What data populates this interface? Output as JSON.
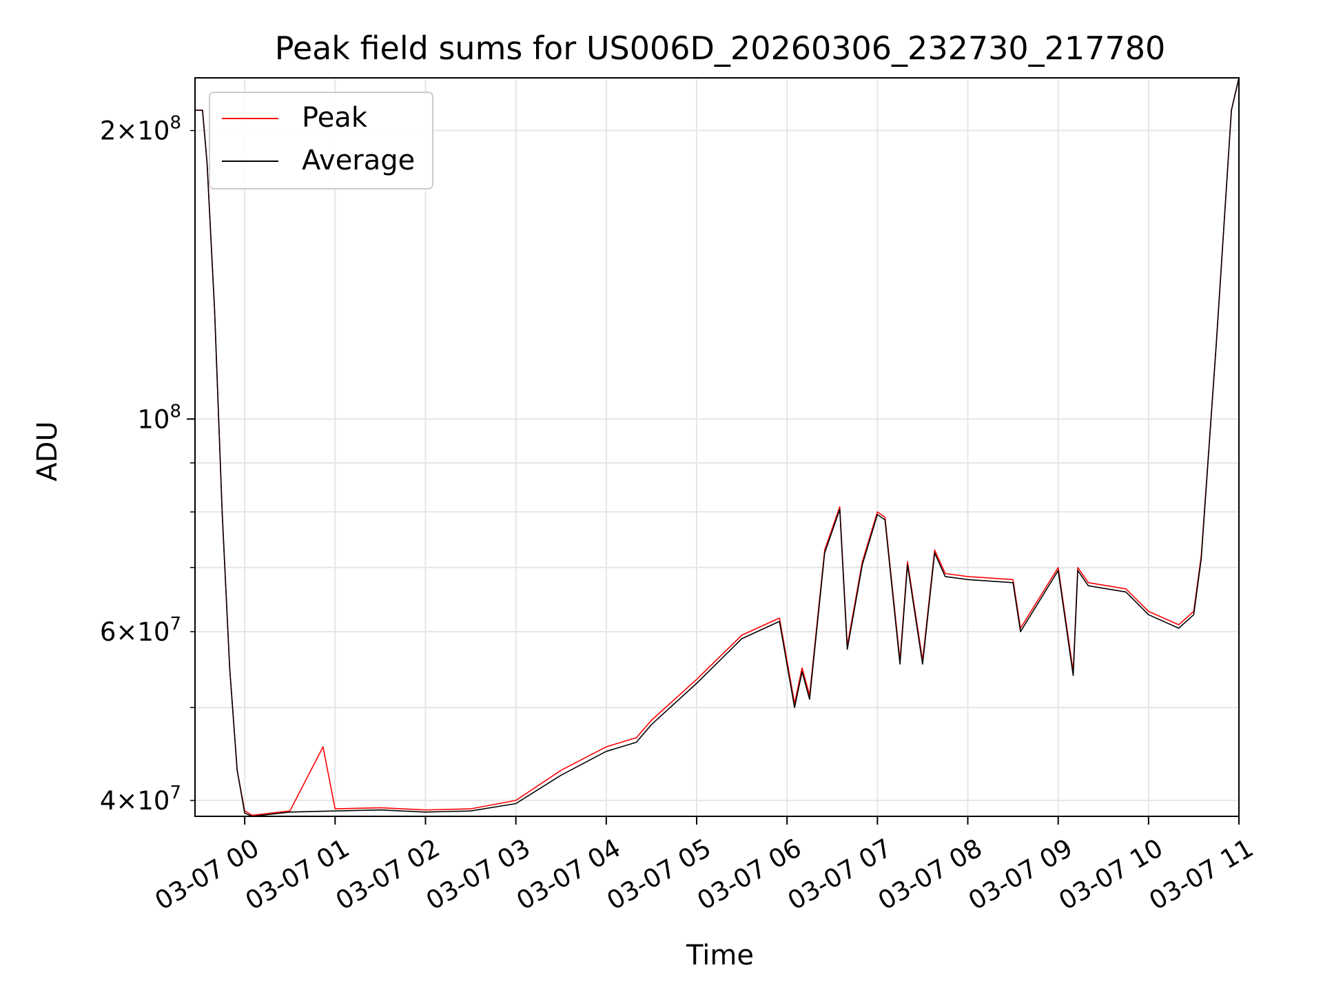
{
  "chart_data": {
    "type": "line",
    "title": "Peak field sums for US006D_20260306_232730_217780",
    "xlabel": "Time",
    "ylabel": "ADU",
    "x_scale": "time",
    "y_scale": "log",
    "xlim": [
      "2026-03-06 23:27",
      "2026-03-07 11:00"
    ],
    "ylim": [
      38500000,
      227000000
    ],
    "x_ticks": [
      "2026-03-07 00:00",
      "2026-03-07 01:00",
      "2026-03-07 02:00",
      "2026-03-07 03:00",
      "2026-03-07 04:00",
      "2026-03-07 05:00",
      "2026-03-07 06:00",
      "2026-03-07 07:00",
      "2026-03-07 08:00",
      "2026-03-07 09:00",
      "2026-03-07 10:00",
      "2026-03-07 11:00"
    ],
    "x_tick_labels": [
      "03-07 00",
      "03-07 01",
      "03-07 02",
      "03-07 03",
      "03-07 04",
      "03-07 05",
      "03-07 06",
      "03-07 07",
      "03-07 08",
      "03-07 09",
      "03-07 10",
      "03-07 11"
    ],
    "y_ticks_major": [
      100000000
    ],
    "y_ticks_labeled_minor": [
      40000000,
      60000000,
      200000000
    ],
    "y_tick_labels": [
      {
        "value": 40000000,
        "mantissa": "4",
        "exponent": "7"
      },
      {
        "value": 60000000,
        "mantissa": "6",
        "exponent": "7"
      },
      {
        "value": 100000000,
        "mantissa": "",
        "exponent": "8"
      },
      {
        "value": 200000000,
        "mantissa": "2",
        "exponent": "8"
      }
    ],
    "y_ticks_minor_unlabeled": [
      50000000,
      70000000,
      80000000,
      90000000
    ],
    "grid": true,
    "legend_position": "upper-left",
    "series": [
      {
        "name": "Peak",
        "color": "#ff0000",
        "x": [
          "2026-03-06 23:27",
          "2026-03-06 23:32",
          "2026-03-06 23:35",
          "2026-03-06 23:40",
          "2026-03-06 23:45",
          "2026-03-06 23:50",
          "2026-03-06 23:55",
          "2026-03-07 00:00",
          "2026-03-07 00:05",
          "2026-03-07 00:30",
          "2026-03-07 00:52",
          "2026-03-07 01:00",
          "2026-03-07 01:30",
          "2026-03-07 02:00",
          "2026-03-07 02:30",
          "2026-03-07 03:00",
          "2026-03-07 03:30",
          "2026-03-07 04:00",
          "2026-03-07 04:20",
          "2026-03-07 04:30",
          "2026-03-07 05:00",
          "2026-03-07 05:30",
          "2026-03-07 05:55",
          "2026-03-07 06:05",
          "2026-03-07 06:10",
          "2026-03-07 06:15",
          "2026-03-07 06:25",
          "2026-03-07 06:35",
          "2026-03-07 06:40",
          "2026-03-07 06:50",
          "2026-03-07 07:00",
          "2026-03-07 07:05",
          "2026-03-07 07:15",
          "2026-03-07 07:20",
          "2026-03-07 07:30",
          "2026-03-07 07:38",
          "2026-03-07 07:45",
          "2026-03-07 08:00",
          "2026-03-07 08:30",
          "2026-03-07 08:35",
          "2026-03-07 09:00",
          "2026-03-07 09:10",
          "2026-03-07 09:13",
          "2026-03-07 09:20",
          "2026-03-07 09:45",
          "2026-03-07 10:00",
          "2026-03-07 10:20",
          "2026-03-07 10:30",
          "2026-03-07 10:35",
          "2026-03-07 10:45",
          "2026-03-07 10:55",
          "2026-03-07 11:00"
        ],
        "values": [
          210000000,
          210000000,
          185000000,
          130000000,
          80000000,
          55000000,
          43000000,
          39000000,
          38600000,
          39000000,
          45500000,
          39200000,
          39300000,
          39100000,
          39200000,
          40000000,
          43000000,
          45500000,
          46500000,
          48500000,
          53500000,
          59500000,
          62000000,
          50500000,
          55000000,
          51500000,
          73000000,
          81000000,
          58000000,
          71000000,
          80000000,
          79000000,
          56000000,
          71000000,
          56000000,
          73000000,
          69000000,
          68500000,
          68000000,
          60500000,
          70000000,
          54500000,
          70000000,
          67500000,
          66500000,
          63000000,
          61000000,
          63000000,
          72000000,
          120000000,
          210000000,
          227000000
        ]
      },
      {
        "name": "Average",
        "color": "#000000",
        "x": [
          "2026-03-06 23:27",
          "2026-03-06 23:32",
          "2026-03-06 23:35",
          "2026-03-06 23:40",
          "2026-03-06 23:45",
          "2026-03-06 23:50",
          "2026-03-06 23:55",
          "2026-03-07 00:00",
          "2026-03-07 00:05",
          "2026-03-07 00:30",
          "2026-03-07 01:00",
          "2026-03-07 01:30",
          "2026-03-07 02:00",
          "2026-03-07 02:30",
          "2026-03-07 03:00",
          "2026-03-07 03:30",
          "2026-03-07 04:00",
          "2026-03-07 04:20",
          "2026-03-07 04:30",
          "2026-03-07 05:00",
          "2026-03-07 05:30",
          "2026-03-07 05:55",
          "2026-03-07 06:05",
          "2026-03-07 06:10",
          "2026-03-07 06:15",
          "2026-03-07 06:25",
          "2026-03-07 06:35",
          "2026-03-07 06:40",
          "2026-03-07 06:50",
          "2026-03-07 07:00",
          "2026-03-07 07:05",
          "2026-03-07 07:15",
          "2026-03-07 07:20",
          "2026-03-07 07:30",
          "2026-03-07 07:38",
          "2026-03-07 07:45",
          "2026-03-07 08:00",
          "2026-03-07 08:30",
          "2026-03-07 08:35",
          "2026-03-07 09:00",
          "2026-03-07 09:10",
          "2026-03-07 09:13",
          "2026-03-07 09:20",
          "2026-03-07 09:45",
          "2026-03-07 10:00",
          "2026-03-07 10:20",
          "2026-03-07 10:30",
          "2026-03-07 10:35",
          "2026-03-07 10:45",
          "2026-03-07 10:55",
          "2026-03-07 11:00"
        ],
        "values": [
          210000000,
          210000000,
          185000000,
          130000000,
          80000000,
          55000000,
          43000000,
          38800000,
          38500000,
          38900000,
          39000000,
          39100000,
          38900000,
          39000000,
          39700000,
          42500000,
          45000000,
          46000000,
          48000000,
          53000000,
          59000000,
          61500000,
          50000000,
          54500000,
          51000000,
          72500000,
          80500000,
          57500000,
          70500000,
          79500000,
          78500000,
          55500000,
          70500000,
          55500000,
          72500000,
          68500000,
          68000000,
          67500000,
          60000000,
          69500000,
          54000000,
          69500000,
          67000000,
          66000000,
          62500000,
          60500000,
          62500000,
          71500000,
          120000000,
          210000000,
          227000000
        ]
      }
    ]
  }
}
